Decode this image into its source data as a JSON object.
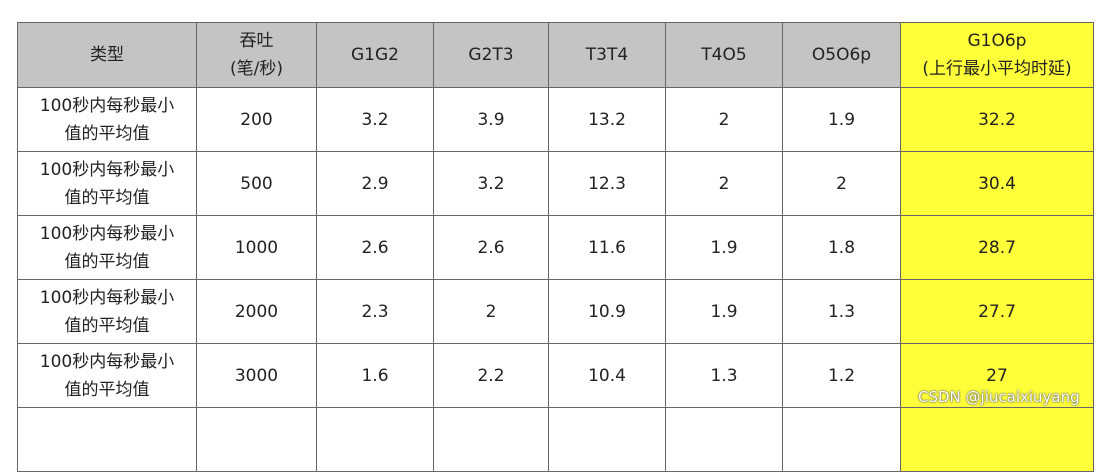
{
  "table": {
    "header": [
      [
        "类型"
      ],
      [
        "吞吐",
        "(笔/秒)"
      ],
      [
        "G1G2"
      ],
      [
        "G2T3"
      ],
      [
        "T3T4"
      ],
      [
        "T4O5"
      ],
      [
        "O5O6p"
      ],
      [
        "G1O6p",
        "(上行最小平均时延)"
      ]
    ],
    "rows": [
      [
        [
          "100秒内每秒最小",
          "值的平均值"
        ],
        200,
        3.2,
        3.9,
        13.2,
        2,
        1.9,
        32.2
      ],
      [
        [
          "100秒内每秒最小",
          "值的平均值"
        ],
        500,
        2.9,
        3.2,
        12.3,
        2,
        2,
        30.4
      ],
      [
        [
          "100秒内每秒最小",
          "值的平均值"
        ],
        1000,
        2.6,
        2.6,
        11.6,
        1.9,
        1.8,
        28.7
      ],
      [
        [
          "100秒内每秒最小",
          "值的平均值"
        ],
        2000,
        2.3,
        2,
        10.9,
        1.9,
        1.3,
        27.7
      ],
      [
        [
          "100秒内每秒最小",
          "值的平均值"
        ],
        3000,
        1.6,
        2.2,
        10.4,
        1.3,
        1.2,
        27
      ]
    ]
  },
  "watermark": "CSDN @jiucaixiuyang"
}
